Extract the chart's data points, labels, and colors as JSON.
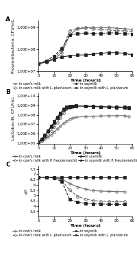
{
  "panel_A": {
    "title": "A",
    "ylabel": "Propionibacteria, CFU/mL",
    "xlabel": "Time [hours]",
    "ylim_log": [
      15000000.0,
      2000000000.0
    ],
    "yticks": [
      10000000.0,
      100000000.0,
      1000000000.0
    ],
    "yticklabels": [
      "1,00E+07",
      "1,00E+08",
      "1,00E+09"
    ],
    "xlim": [
      0,
      60
    ],
    "xticks": [
      0,
      10,
      20,
      30,
      40,
      50,
      60
    ],
    "series": [
      {
        "label": "in cow's milk",
        "x": [
          0,
          5,
          10,
          15,
          20,
          25,
          30,
          35,
          40,
          45,
          50,
          55,
          60
        ],
        "y": [
          22000000.0,
          25000000.0,
          35000000.0,
          70000000.0,
          450000000.0,
          850000000.0,
          920000000.0,
          980000000.0,
          980000000.0,
          950000000.0,
          900000000.0,
          850000000.0,
          800000000.0
        ],
        "marker": "o",
        "fillstyle": "none",
        "color": "#666666",
        "linestyle": "-",
        "linewidth": 0.8
      },
      {
        "label": "in cow's milk with L. plantarum",
        "x": [
          0,
          5,
          10,
          15,
          20,
          25,
          30,
          35,
          40,
          45,
          50,
          55,
          60
        ],
        "y": [
          22000000.0,
          28000000.0,
          40000000.0,
          90000000.0,
          700000000.0,
          900000000.0,
          1000000000.0,
          850000000.0,
          800000000.0,
          750000000.0,
          700000000.0,
          680000000.0,
          650000000.0
        ],
        "marker": "D",
        "fillstyle": "none",
        "color": "#666666",
        "linestyle": "--",
        "linewidth": 0.8
      },
      {
        "label": "in soymilk",
        "x": [
          0,
          5,
          10,
          15,
          20,
          25,
          30,
          35,
          40,
          45,
          50,
          55,
          60
        ],
        "y": [
          22000000.0,
          28000000.0,
          35000000.0,
          45000000.0,
          50000000.0,
          55000000.0,
          55000000.0,
          60000000.0,
          65000000.0,
          70000000.0,
          70000000.0,
          65000000.0,
          55000000.0
        ],
        "marker": "s",
        "fillstyle": "full",
        "color": "#222222",
        "linestyle": "-",
        "linewidth": 0.8
      },
      {
        "label": "in soymilk with L. plantarum",
        "x": [
          0,
          5,
          10,
          15,
          20,
          25,
          30,
          35,
          40,
          45,
          50,
          55,
          60
        ],
        "y": [
          22000000.0,
          30000000.0,
          50000000.0,
          110000000.0,
          450000000.0,
          500000000.0,
          550000000.0,
          520000000.0,
          520000000.0,
          550000000.0,
          550000000.0,
          500000000.0,
          480000000.0
        ],
        "marker": "s",
        "fillstyle": "full",
        "color": "#222222",
        "linestyle": "--",
        "linewidth": 0.8
      }
    ],
    "legend": [
      {
        "label": "in cow's milk",
        "marker": "o",
        "fillstyle": "none",
        "linestyle": "-",
        "color": "#666666"
      },
      {
        "label": "in cow's milk with L. plantarum",
        "marker": "D",
        "fillstyle": "none",
        "linestyle": "--",
        "color": "#666666"
      },
      {
        "label": "in soymilk",
        "marker": "s",
        "fillstyle": "full",
        "linestyle": "-",
        "color": "#222222"
      },
      {
        "label": "in soymilk with L. plantarum",
        "marker": "s",
        "fillstyle": "full",
        "linestyle": "--",
        "color": "#222222"
      }
    ]
  },
  "panel_B": {
    "title": "B",
    "ylabel": "Lactobacilli, CFU/mL",
    "xlabel": "Time (hours)",
    "ylim_log": [
      80000.0,
      20000000000.0
    ],
    "yticks": [
      100000.0,
      1000000.0,
      10000000.0,
      100000000.0,
      1000000000.0,
      10000000000.0
    ],
    "yticklabels": [
      "1,00E+05",
      "1,00E+06",
      "1,00E+07",
      "1,00E+08",
      "1,00E+09",
      "1,00E+10"
    ],
    "xlim": [
      0,
      60
    ],
    "xticks": [
      0,
      10,
      20,
      30,
      40,
      50,
      60
    ],
    "series": [
      {
        "label": "in cow's milk",
        "x": [
          0,
          2,
          4,
          6,
          8,
          10,
          12,
          14,
          16,
          18,
          20,
          22,
          24,
          30,
          35,
          40,
          45,
          50,
          55,
          58
        ],
        "y": [
          120000.0,
          150000.0,
          250000.0,
          400000.0,
          700000.0,
          1500000.0,
          3000000.0,
          6000000.0,
          12000000.0,
          20000000.0,
          35000000.0,
          45000000.0,
          55000000.0,
          65000000.0,
          70000000.0,
          75000000.0,
          78000000.0,
          80000000.0,
          80000000.0,
          70000000.0
        ],
        "marker": "o",
        "fillstyle": "none",
        "color": "#666666",
        "linestyle": "-",
        "linewidth": 0.8
      },
      {
        "label": "in cow's milk with P. freudenreichii",
        "x": [
          0,
          2,
          4,
          6,
          8,
          10,
          12,
          14,
          16,
          18,
          20,
          22,
          24,
          30,
          35,
          40,
          45,
          50,
          55,
          58
        ],
        "y": [
          120000.0,
          200000.0,
          400000.0,
          800000.0,
          2000000.0,
          5000000.0,
          15000000.0,
          50000000.0,
          150000000.0,
          400000000.0,
          600000000.0,
          750000000.0,
          850000000.0,
          850000000.0,
          800000000.0,
          750000000.0,
          700000000.0,
          650000000.0,
          600000000.0,
          550000000.0
        ],
        "marker": "D",
        "fillstyle": "none",
        "color": "#666666",
        "linestyle": "--",
        "linewidth": 0.8
      },
      {
        "label": "in soymilk",
        "x": [
          0,
          2,
          4,
          6,
          8,
          10,
          12,
          14,
          16,
          18,
          20,
          22,
          24,
          30,
          35,
          40,
          45,
          50,
          55,
          58
        ],
        "y": [
          120000.0,
          250000.0,
          600000.0,
          1800000.0,
          5000000.0,
          15000000.0,
          50000000.0,
          120000000.0,
          350000000.0,
          600000000.0,
          750000000.0,
          800000000.0,
          850000000.0,
          800000000.0,
          750000000.0,
          700000000.0,
          650000000.0,
          600000000.0,
          550000000.0,
          500000000.0
        ],
        "marker": "s",
        "fillstyle": "full",
        "color": "#222222",
        "linestyle": "-",
        "linewidth": 0.8
      },
      {
        "label": "in soymilk with P. freudenreichii",
        "x": [
          0,
          2,
          4,
          6,
          8,
          10,
          12,
          14,
          16,
          18,
          20,
          22,
          24,
          30,
          35,
          40,
          45,
          50,
          55,
          58
        ],
        "y": [
          120000.0,
          280000.0,
          700000.0,
          2000000.0,
          6000000.0,
          20000000.0,
          60000000.0,
          150000000.0,
          400000000.0,
          650000000.0,
          800000000.0,
          850000000.0,
          900000000.0,
          850000000.0,
          800000000.0,
          750000000.0,
          700000000.0,
          700000000.0,
          650000000.0,
          600000000.0
        ],
        "marker": "s",
        "fillstyle": "full",
        "color": "#222222",
        "linestyle": "--",
        "linewidth": 0.8
      }
    ],
    "legend": [
      {
        "label": "in cow's milk",
        "marker": "o",
        "fillstyle": "none",
        "linestyle": "-",
        "color": "#666666"
      },
      {
        "label": "in cow's milk with P. freudenreichii",
        "marker": "D",
        "fillstyle": "none",
        "linestyle": "--",
        "color": "#666666"
      },
      {
        "label": "in soymilk",
        "marker": "s",
        "fillstyle": "full",
        "linestyle": "-",
        "color": "#222222"
      },
      {
        "label": "in soymilk with P. freudenreichii",
        "marker": "s",
        "fillstyle": "full",
        "linestyle": "--",
        "color": "#222222"
      }
    ]
  },
  "panel_C": {
    "title": "C",
    "ylabel": "pH",
    "xlabel": "Time (hours)",
    "ylim": [
      3.0,
      7.8
    ],
    "yticks": [
      3.5,
      4.0,
      4.5,
      5.0,
      5.5,
      6.0,
      6.5,
      7.0,
      7.5
    ],
    "yticklabels": [
      "3,5",
      "4",
      "4,5",
      "5",
      "5,5",
      "6",
      "6,5",
      "7",
      "7,5"
    ],
    "xlim": [
      0,
      60
    ],
    "xticks": [
      0,
      10,
      20,
      30,
      40,
      50,
      60
    ],
    "series": [
      {
        "label": "in cow's milk",
        "x": [
          0,
          5,
          10,
          15,
          20,
          25,
          30,
          35,
          40,
          45,
          50,
          55
        ],
        "y": [
          6.72,
          6.7,
          6.68,
          6.55,
          6.1,
          5.8,
          5.6,
          5.45,
          5.4,
          5.38,
          5.35,
          5.35
        ],
        "marker": "o",
        "fillstyle": "none",
        "color": "#666666",
        "linestyle": "-",
        "linewidth": 0.8
      },
      {
        "label": "in cow's milk with L. plantarum",
        "x": [
          0,
          5,
          10,
          15,
          20,
          25,
          30,
          35,
          40,
          45,
          50,
          55
        ],
        "y": [
          6.72,
          6.7,
          6.65,
          6.4,
          5.5,
          4.9,
          4.65,
          4.5,
          4.45,
          4.42,
          4.4,
          4.4
        ],
        "marker": "D",
        "fillstyle": "none",
        "color": "#666666",
        "linestyle": "--",
        "linewidth": 0.8
      },
      {
        "label": "in soymilk",
        "x": [
          0,
          5,
          10,
          15,
          20,
          25,
          30,
          35,
          40,
          45,
          50,
          55
        ],
        "y": [
          6.72,
          6.72,
          6.72,
          6.7,
          6.68,
          6.68,
          6.68,
          6.68,
          6.68,
          6.68,
          6.68,
          6.68
        ],
        "marker": "s",
        "fillstyle": "full",
        "color": "#222222",
        "linestyle": "-",
        "linewidth": 0.8
      },
      {
        "label": "in soymilk with L. plantarum",
        "x": [
          0,
          5,
          10,
          15,
          20,
          25,
          30,
          35,
          40,
          45,
          50,
          55
        ],
        "y": [
          6.72,
          6.7,
          6.65,
          6.3,
          4.6,
          4.35,
          4.25,
          4.2,
          4.18,
          4.15,
          4.15,
          4.15
        ],
        "marker": "s",
        "fillstyle": "full",
        "color": "#222222",
        "linestyle": "--",
        "linewidth": 0.8
      }
    ],
    "legend": [
      {
        "label": "in cow's milk",
        "marker": "o",
        "fillstyle": "none",
        "linestyle": "-",
        "color": "#666666"
      },
      {
        "label": "in cow's milk with L. plantarum",
        "marker": "D",
        "fillstyle": "none",
        "linestyle": "--",
        "color": "#666666"
      },
      {
        "label": "in soymilk",
        "marker": "s",
        "fillstyle": "full",
        "linestyle": "-",
        "color": "#222222"
      },
      {
        "label": "in soymilk with L. plantarum",
        "marker": "s",
        "fillstyle": "full",
        "linestyle": "--",
        "color": "#222222"
      }
    ]
  },
  "bg_color": "#ffffff",
  "markersize": 2.5,
  "fontsize_label": 4.5,
  "fontsize_tick": 4.0,
  "fontsize_legend": 3.5,
  "fontsize_panel": 6.5
}
